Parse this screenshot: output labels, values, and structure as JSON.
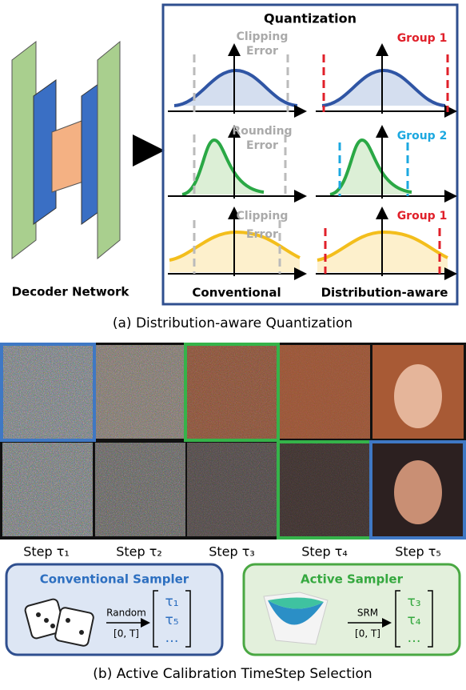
{
  "part_a": {
    "title": "Quantization",
    "network_label": "Decoder Network",
    "columns": [
      "Conventional",
      "Distribution-aware"
    ],
    "error_labels": [
      [
        "Clipping",
        "Error"
      ],
      [
        "Rounding",
        "Error"
      ],
      [
        "Clipping",
        "Error"
      ]
    ],
    "group_labels": [
      "Group 1",
      "Group 2",
      "Group 1"
    ],
    "caption": "(a) Distribution-aware Quantization"
  },
  "part_b": {
    "steps": [
      "Step τ₁",
      "Step τ₂",
      "Step τ₃",
      "Step τ₄",
      "Step τ₅"
    ],
    "samplers": [
      {
        "title": "Conventional Sampler",
        "method": "Random",
        "range": "[0, T]",
        "selected": [
          "τ₁",
          "τ₅",
          "…"
        ]
      },
      {
        "title": "Active Sampler",
        "method": "SRM",
        "range": "[0, T]",
        "selected": [
          "τ₃",
          "τ₄",
          "…"
        ]
      }
    ],
    "caption": "(b) Active Calibration TimeStep Selection"
  }
}
